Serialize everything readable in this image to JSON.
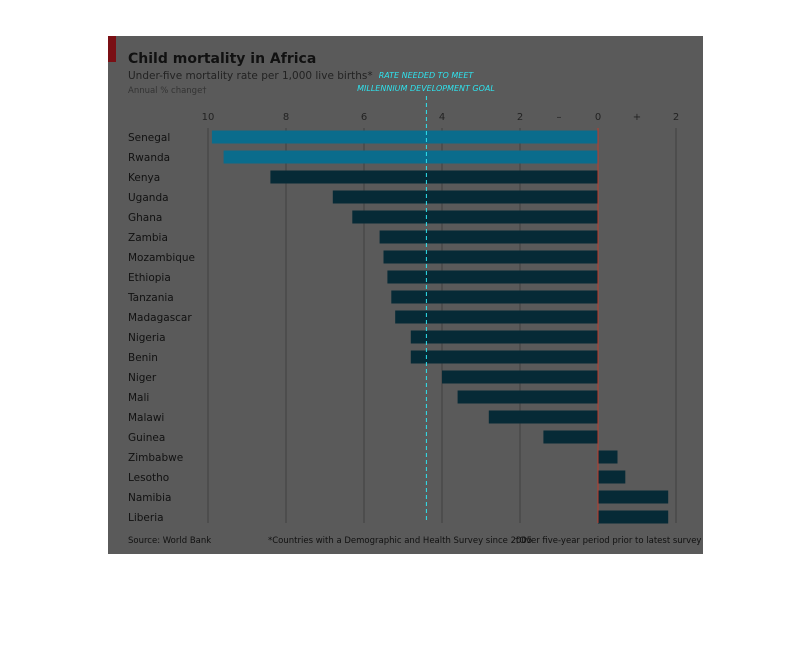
{
  "chart_data": {
    "type": "bar",
    "orientation": "horizontal",
    "title": "Child mortality in Africa",
    "subtitle": "Under-five mortality rate per 1,000 live births*",
    "unit_note": "Annual % change†",
    "annotation": "RATE NEEDED TO MEET MILLENNIUM DEVELOPMENT GOAL",
    "annotation_lines": [
      "RATE NEEDED TO MEET",
      "MILLENNIUM DEVELOPMENT GOAL"
    ],
    "goal_value": -4.4,
    "axis": {
      "xlim": [
        -10.2,
        2.0
      ],
      "ticks": [
        -10,
        -8,
        -6,
        -4,
        -2,
        0,
        2
      ],
      "tick_labels": [
        "10",
        "8",
        "6",
        "4",
        "2",
        "0",
        "2"
      ],
      "sign_labels": [
        "–",
        "0",
        "+"
      ]
    },
    "categories": [
      "Senegal",
      "Rwanda",
      "Kenya",
      "Uganda",
      "Ghana",
      "Zambia",
      "Mozambique",
      "Ethiopia",
      "Tanzania",
      "Madagascar",
      "Nigeria",
      "Benin",
      "Niger",
      "Mali",
      "Malawi",
      "Guinea",
      "Zimbabwe",
      "Lesotho",
      "Namibia",
      "Liberia"
    ],
    "values": [
      -9.9,
      -9.6,
      -8.4,
      -6.8,
      -6.3,
      -5.6,
      -5.5,
      -5.4,
      -5.3,
      -5.2,
      -4.8,
      -4.8,
      -4.0,
      -3.6,
      -2.8,
      -1.4,
      0.5,
      0.7,
      1.8,
      1.8
    ],
    "highlighted": [
      "Senegal",
      "Rwanda"
    ],
    "colors": {
      "highlight": "#0a6c8c",
      "bar": "#062a36",
      "background": "#5a5a5a",
      "goal_line": "#2fe3ee",
      "zero_line": "#c0392b",
      "gridline": "#404040",
      "brand": "#7a0f14"
    },
    "grid": true,
    "source": "Source: World Bank",
    "footnote1": "*Countries with a Demographic and Health Survey since 2005",
    "footnote2": "†Over five-year period prior to latest survey"
  }
}
